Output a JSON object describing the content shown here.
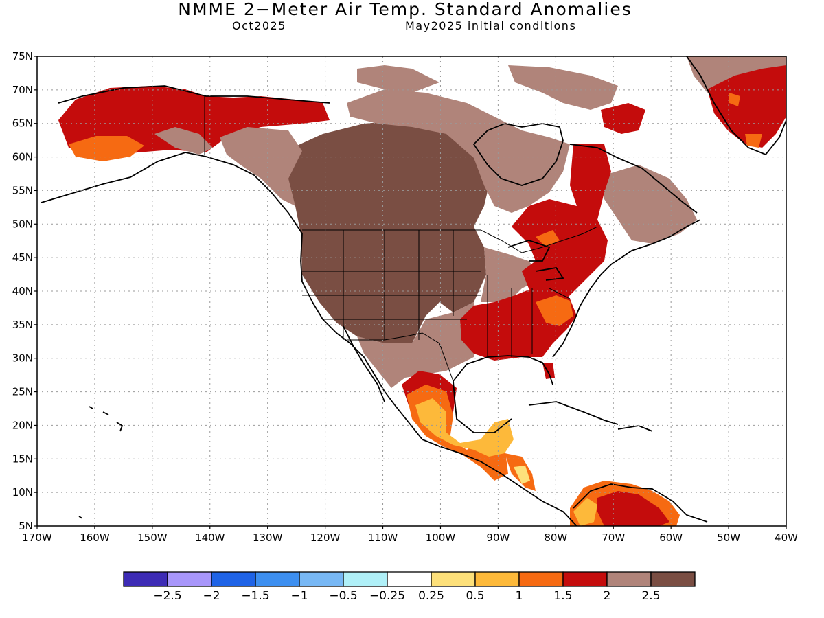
{
  "title": "NMME 2−Meter Air Temp. Standard Anomalies",
  "subtitle_left": "Oct2025",
  "subtitle_right": "May2025 initial conditions",
  "lat_labels": [
    "75N",
    "70N",
    "65N",
    "60N",
    "55N",
    "50N",
    "45N",
    "40N",
    "35N",
    "30N",
    "25N",
    "20N",
    "15N",
    "10N",
    "5N"
  ],
  "lon_labels": [
    "170W",
    "160W",
    "150W",
    "140W",
    "130W",
    "120W",
    "110W",
    "100W",
    "90W",
    "80W",
    "70W",
    "60W",
    "50W",
    "40W"
  ],
  "colorbar": {
    "colors": [
      "#3d2bb5",
      "#a896fa",
      "#1f63e6",
      "#3d8ff0",
      "#78b8f5",
      "#b0f0f8",
      "#ffffff",
      "#fde07a",
      "#fdb93a",
      "#f66a12",
      "#c40c0c",
      "#b0847a",
      "#7a4e43"
    ],
    "labels": [
      "−2.5",
      "−2",
      "−1.5",
      "−1",
      "−0.5",
      "−0.25",
      "0.25",
      "0.5",
      "1",
      "1.5",
      "2",
      "2.5"
    ]
  },
  "map": {
    "lon_range": [
      -170,
      -40
    ],
    "lat_range": [
      5,
      75
    ],
    "legend_items": {
      "dark_brown": "#7a4e43",
      "light_brown": "#b0847a",
      "dark_red": "#c40c0c",
      "orange": "#f66a12",
      "light_orange": "#fdb93a",
      "yellow": "#fde07a"
    }
  }
}
